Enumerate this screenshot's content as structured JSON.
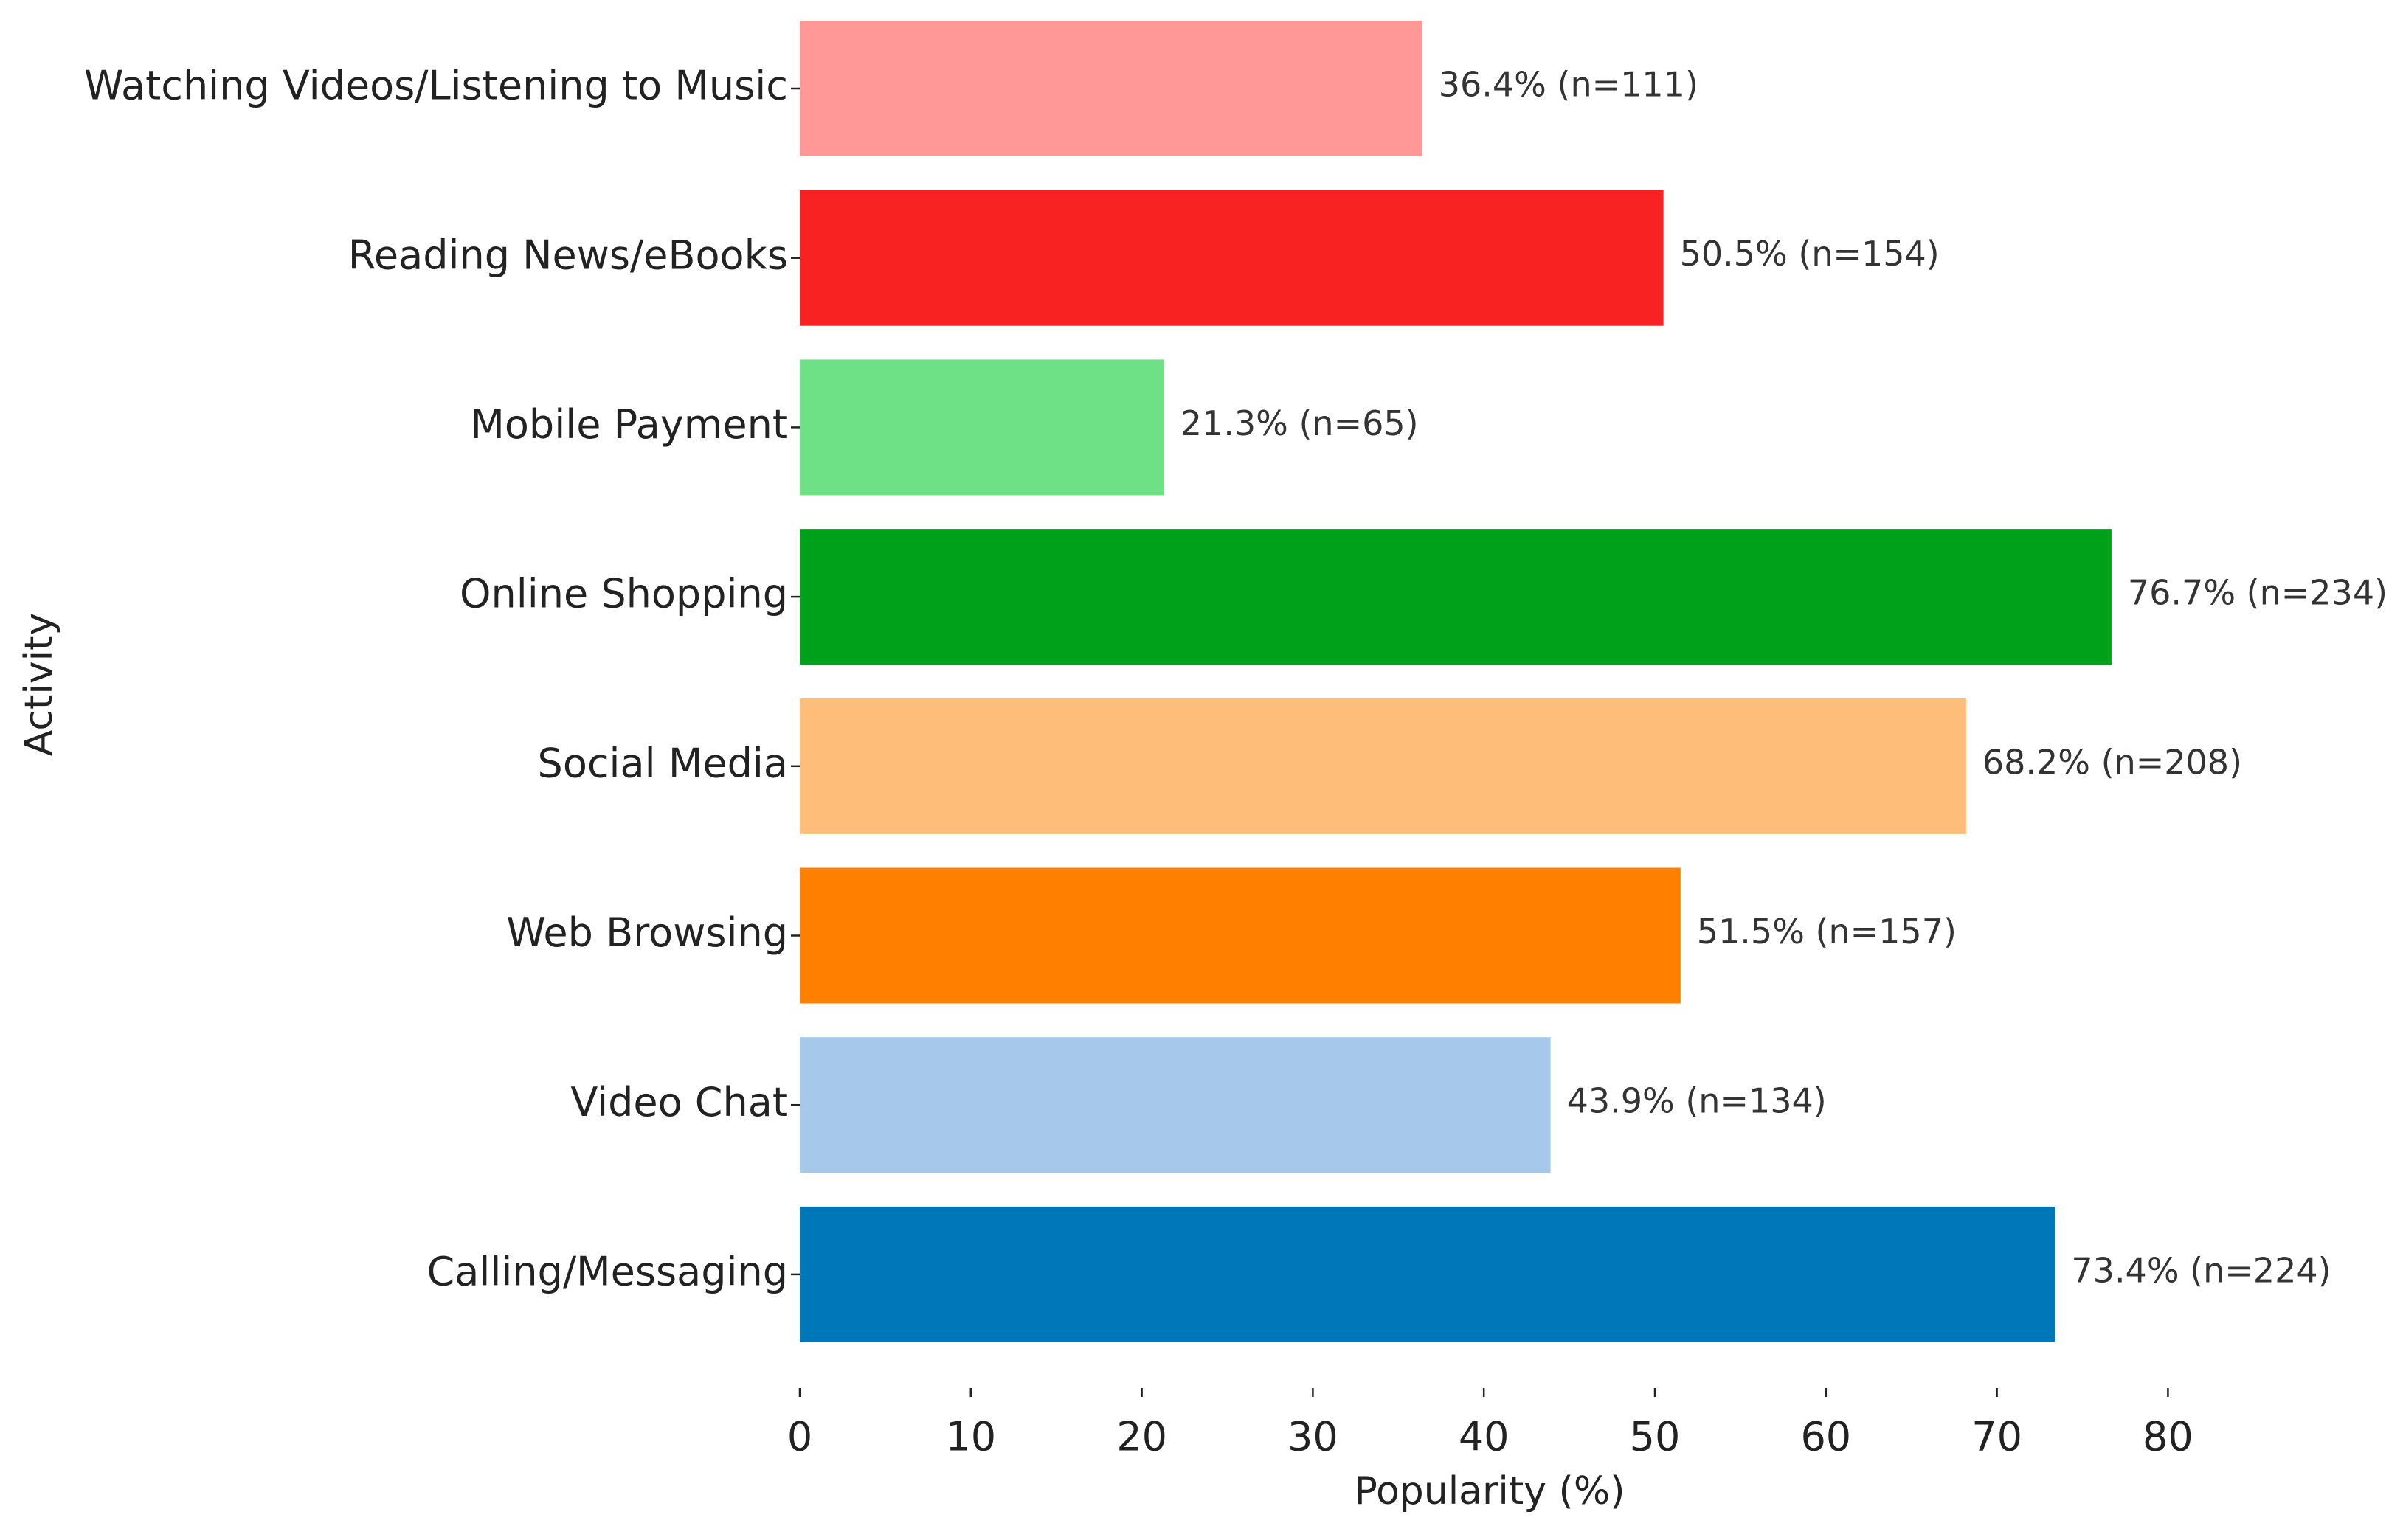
{
  "chart_data": {
    "type": "barh",
    "x_label": "Popularity (%)",
    "y_label": "Activity",
    "categories": [
      "Watching Videos/Listening to Music",
      "Reading News/eBooks",
      "Mobile Payment",
      "Online Shopping",
      "Social Media",
      "Web Browsing",
      "Video Chat",
      "Calling/Messaging"
    ],
    "values": [
      36.4,
      50.5,
      21.3,
      76.7,
      68.2,
      51.5,
      43.9,
      73.4
    ],
    "value_labels": [
      "36.4% (n=111)",
      "50.5% (n=154)",
      "21.3% (n=65)",
      "76.7% (n=234)",
      "68.2% (n=208)",
      "51.5% (n=157)",
      "43.9% (n=134)",
      "73.4% (n=224)"
    ],
    "colors": [
      "#ff9896",
      "#f82222",
      "#6ee086",
      "#00a11a",
      "#ffbd7a",
      "#ff8000",
      "#a6c8ea",
      "#0077b8"
    ],
    "xlim": [
      0,
      80.5
    ],
    "xticks": [
      0,
      10,
      20,
      30,
      40,
      50,
      60,
      70,
      80
    ],
    "grid": false
  }
}
